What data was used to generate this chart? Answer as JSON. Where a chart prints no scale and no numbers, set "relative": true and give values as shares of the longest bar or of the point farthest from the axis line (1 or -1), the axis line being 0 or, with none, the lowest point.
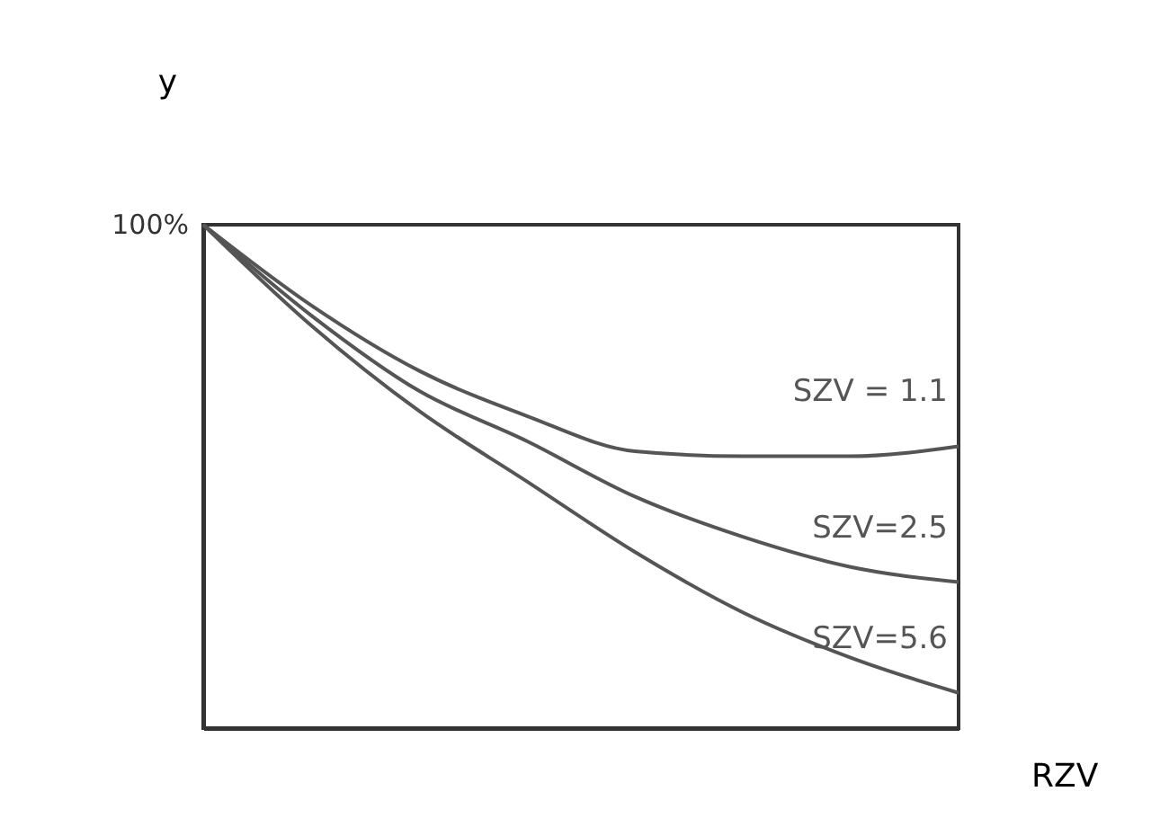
{
  "chart_data": {
    "type": "line",
    "xlabel": "RZV",
    "ylabel": "y",
    "relative": true,
    "grid": false,
    "legend": false,
    "categories": [
      null,
      null,
      null,
      null,
      null,
      null,
      null,
      null
    ],
    "annotations": [
      "100%"
    ],
    "series": [
      {
        "name": "SZV = 1.1",
        "color": "#555555",
        "values": [
          1,
          0.84,
          0.71,
          0.62,
          0.55,
          0.54,
          0.54,
          0.56
        ]
      },
      {
        "name": "SZV=2.5",
        "color": "#555555",
        "values": [
          1,
          0.82,
          0.67,
          0.57,
          0.46,
          0.38,
          0.32,
          0.29
        ]
      },
      {
        "name": "SZV=5.6",
        "color": "#555555",
        "values": [
          1,
          0.8,
          0.63,
          0.49,
          0.35,
          0.23,
          0.14,
          0.07
        ]
      }
    ]
  }
}
